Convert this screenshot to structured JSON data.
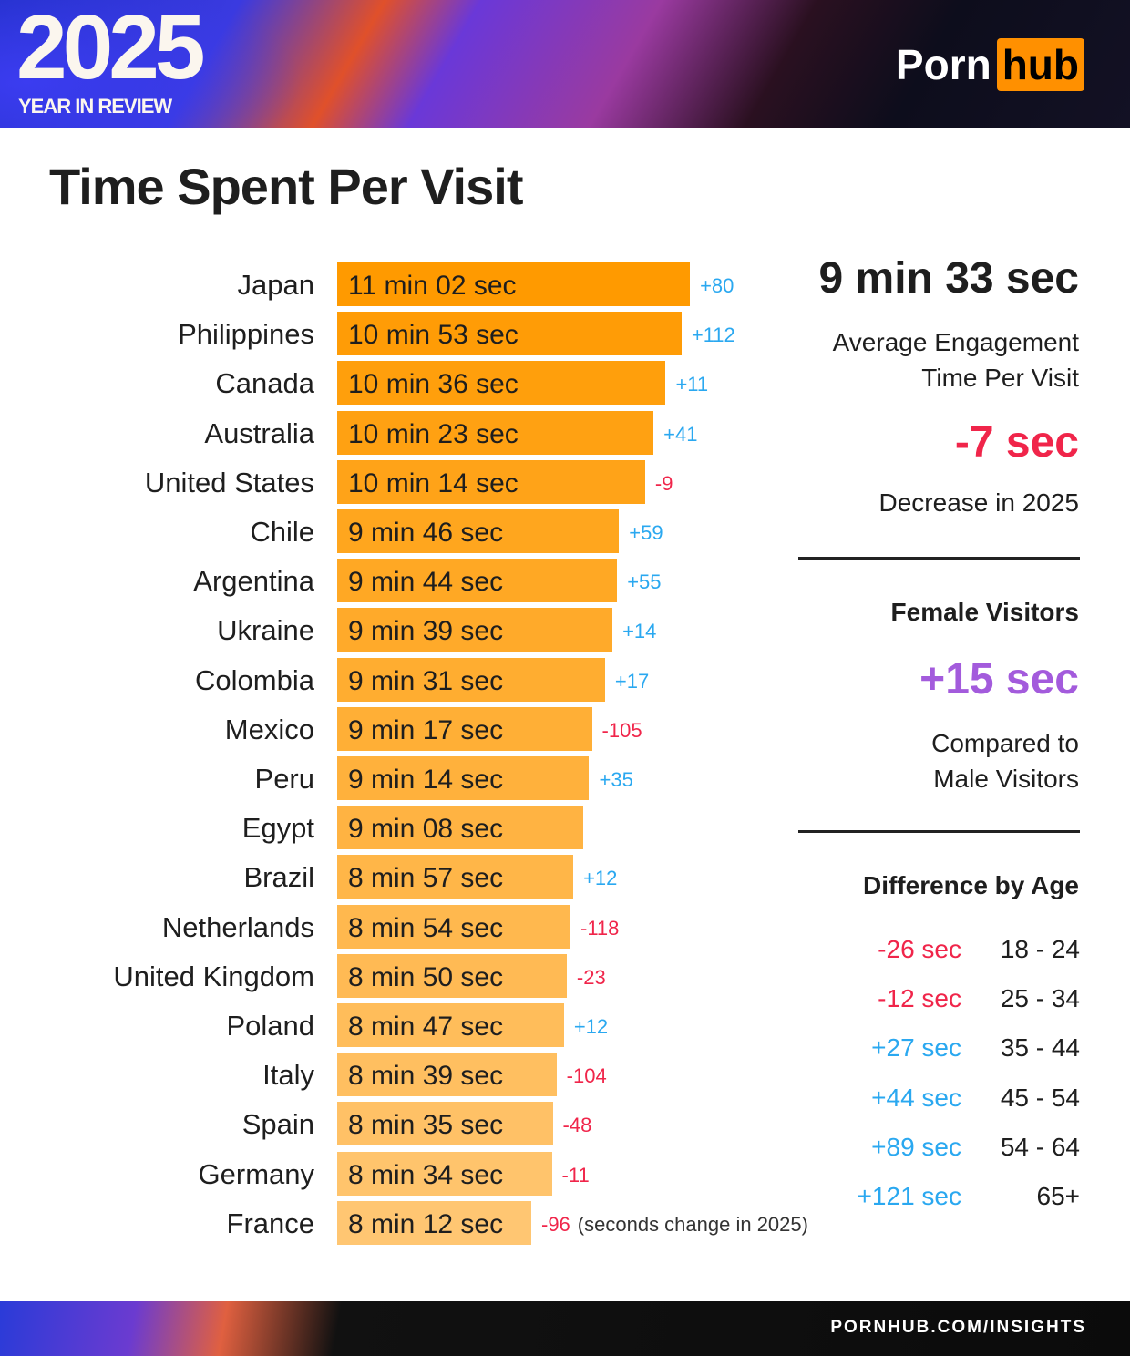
{
  "header": {
    "year": "2025",
    "subtitle": "YEAR IN REVIEW",
    "brand_part1": "Porn",
    "brand_part2": "hub"
  },
  "title": "Time Spent Per Visit",
  "chart_data": {
    "type": "bar",
    "orientation": "horizontal",
    "title": "Time Spent Per Visit",
    "categories": [
      "Japan",
      "Philippines",
      "Canada",
      "Australia",
      "United States",
      "Chile",
      "Argentina",
      "Ukraine",
      "Colombia",
      "Mexico",
      "Peru",
      "Egypt",
      "Brazil",
      "Netherlands",
      "United Kingdom",
      "Poland",
      "Italy",
      "Spain",
      "Germany",
      "France"
    ],
    "labels": [
      "11 min 02 sec",
      "10 min 53 sec",
      "10 min 36 sec",
      "10 min 23 sec",
      "10 min 14 sec",
      "9 min 46 sec",
      "9 min 44 sec",
      "9 min 39 sec",
      "9 min 31 sec",
      "9 min 17 sec",
      "9 min 14 sec",
      "9 min 08 sec",
      "8 min 57 sec",
      "8 min 54 sec",
      "8 min 50 sec",
      "8 min 47 sec",
      "8 min 39 sec",
      "8 min 35 sec",
      "8 min 34 sec",
      "8 min 12 sec"
    ],
    "values_seconds": [
      662,
      653,
      636,
      623,
      614,
      586,
      584,
      579,
      571,
      557,
      554,
      548,
      537,
      534,
      530,
      527,
      519,
      515,
      514,
      492
    ],
    "changes": [
      "+80",
      "+112",
      "+11",
      "+41",
      "-9",
      "+59",
      "+55",
      "+14",
      "+17",
      "-105",
      "+35",
      "",
      "+12",
      "-118",
      "-23",
      "+12",
      "-104",
      "-48",
      "-11",
      "-96"
    ],
    "change_note": "(seconds change in 2025)",
    "colors": {
      "bar_top": "#ff9a00",
      "bar_bottom": "#ffc672",
      "positive": "#2aa8f0",
      "negative": "#f0254a"
    }
  },
  "summary": {
    "average": "9 min 33 sec",
    "average_label_1": "Average Engagement",
    "average_label_2": "Time Per Visit",
    "change": "-7 sec",
    "change_label": "Decrease in 2025",
    "female_heading": "Female Visitors",
    "female_value": "+15 sec",
    "female_label_1": "Compared to",
    "female_label_2": "Male Visitors",
    "age_heading": "Difference by Age",
    "ages": [
      {
        "diff": "-26 sec",
        "range": "18 - 24",
        "sign": "neg"
      },
      {
        "diff": "-12 sec",
        "range": "25 - 34",
        "sign": "neg"
      },
      {
        "diff": "+27 sec",
        "range": "35 - 44",
        "sign": "pos"
      },
      {
        "diff": "+44 sec",
        "range": "45 - 54",
        "sign": "pos"
      },
      {
        "diff": "+89 sec",
        "range": "54 - 64",
        "sign": "pos"
      },
      {
        "diff": "+121 sec",
        "range": "65+",
        "sign": "pos"
      }
    ]
  },
  "footer": {
    "url": "PORNHUB.COM/INSIGHTS"
  }
}
